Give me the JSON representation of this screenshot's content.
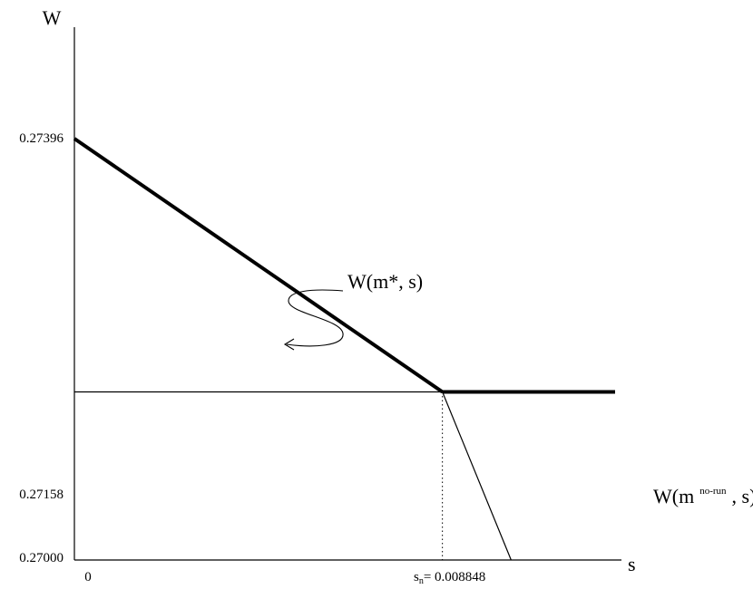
{
  "chart_data": {
    "type": "line",
    "title": "",
    "ylabel": "W",
    "xlabel": "s",
    "y_ticks": [
      "0.27396",
      "0.27158",
      "0.27000"
    ],
    "x_ticks": [
      "0"
    ],
    "ylim": [
      0.27,
      0.27396
    ],
    "xlim": [
      0,
      0.013
    ],
    "series": [
      {
        "name": "W(m*, s)",
        "style": "thick",
        "x": [
          0,
          0.008848
        ],
        "y": [
          0.27396,
          0.27158
        ]
      },
      {
        "name": "W(m no-run, s)",
        "style": "thick",
        "x": [
          0.008848,
          0.013
        ],
        "y": [
          0.27158,
          0.27158
        ]
      },
      {
        "style": "thin",
        "x": [
          0,
          0.008848
        ],
        "y": [
          0.27158,
          0.27158
        ]
      },
      {
        "style": "thin",
        "x": [
          0.008848,
          0.0105
        ],
        "y": [
          0.27158,
          0.27
        ]
      }
    ],
    "annotations": {
      "sn_label_base": "s",
      "sn_label_sub": "n",
      "sn_label_value": "= 0.008848",
      "sn_value": 0.008848,
      "curve1_label": "W(m*, s)",
      "curve2_label_base": "W(m",
      "curve2_label_sup": "no-run",
      "curve2_label_end": ", s)"
    }
  }
}
